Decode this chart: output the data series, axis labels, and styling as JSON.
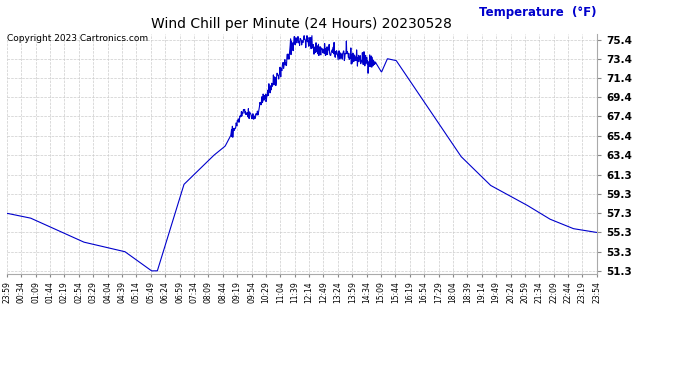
{
  "title": "Wind Chill per Minute (24 Hours) 20230528",
  "ylabel_text": "Temperature  (°F)",
  "copyright": "Copyright 2023 Cartronics.com",
  "line_color": "#0000cc",
  "background_color": "#ffffff",
  "grid_color": "#cccccc",
  "ylabel_color": "#0000cc",
  "ylim_min": 51.0,
  "ylim_max": 76.0,
  "yticks": [
    51.3,
    53.3,
    55.3,
    57.3,
    59.3,
    61.3,
    63.4,
    65.4,
    67.4,
    69.4,
    71.4,
    73.4,
    75.4
  ],
  "xtick_labels": [
    "23:59",
    "00:34",
    "01:09",
    "01:44",
    "02:19",
    "02:54",
    "03:29",
    "04:04",
    "04:39",
    "05:14",
    "05:49",
    "06:24",
    "06:59",
    "07:34",
    "08:09",
    "08:44",
    "09:19",
    "09:54",
    "10:29",
    "11:04",
    "11:39",
    "12:14",
    "12:49",
    "13:24",
    "13:59",
    "14:34",
    "15:09",
    "15:44",
    "16:19",
    "16:54",
    "17:29",
    "18:04",
    "18:39",
    "19:14",
    "19:49",
    "20:24",
    "20:59",
    "21:34",
    "22:09",
    "22:44",
    "23:19",
    "23:54"
  ],
  "num_points": 1440,
  "figwidth": 6.9,
  "figheight": 3.75,
  "dpi": 100
}
